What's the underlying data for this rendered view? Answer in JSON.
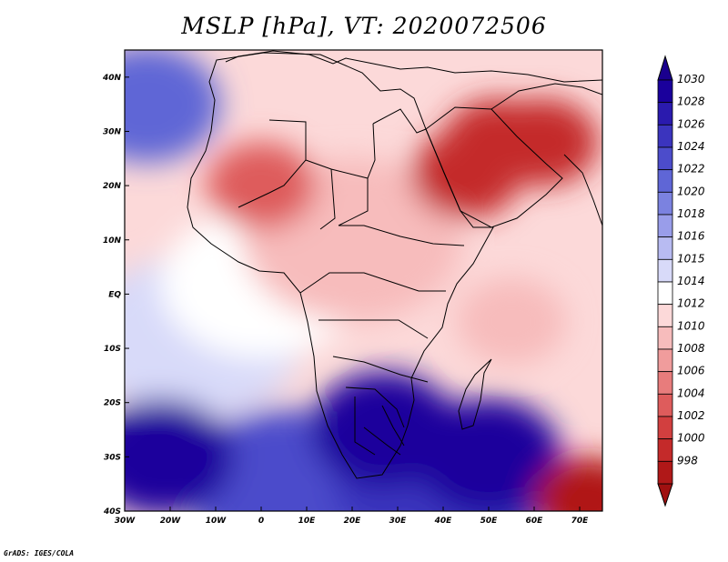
{
  "title": "MSLP [hPa], VT: 2020072506",
  "credit": "GrADS: IGES/COLA",
  "map": {
    "variable": "Mean sea level pressure",
    "units": "hPa",
    "valid_time": "2020072506",
    "lon_range": [
      -30,
      75
    ],
    "lat_range": [
      -40,
      45
    ],
    "lon_ticks": [
      {
        "value": -30,
        "label": "30W"
      },
      {
        "value": -20,
        "label": "20W"
      },
      {
        "value": -10,
        "label": "10W"
      },
      {
        "value": 0,
        "label": "0"
      },
      {
        "value": 10,
        "label": "10E"
      },
      {
        "value": 20,
        "label": "20E"
      },
      {
        "value": 30,
        "label": "30E"
      },
      {
        "value": 40,
        "label": "40E"
      },
      {
        "value": 50,
        "label": "50E"
      },
      {
        "value": 60,
        "label": "60E"
      },
      {
        "value": 70,
        "label": "70E"
      }
    ],
    "lat_ticks": [
      {
        "value": 40,
        "label": "40N"
      },
      {
        "value": 30,
        "label": "30N"
      },
      {
        "value": 20,
        "label": "20N"
      },
      {
        "value": 10,
        "label": "10N"
      },
      {
        "value": 0,
        "label": "EQ"
      },
      {
        "value": -10,
        "label": "10S"
      },
      {
        "value": -20,
        "label": "20S"
      },
      {
        "value": -30,
        "label": "30S"
      },
      {
        "value": -40,
        "label": "40S"
      }
    ]
  },
  "colorbar": {
    "levels": [
      "1030",
      "1028",
      "1026",
      "1024",
      "1022",
      "1020",
      "1018",
      "1016",
      "1015",
      "1014",
      "1012",
      "1010",
      "1008",
      "1006",
      "1004",
      "1002",
      "1000",
      "998"
    ],
    "colors": [
      "#1a009c",
      "#2a1aae",
      "#3b34be",
      "#4c4ccb",
      "#5f66d6",
      "#7b82e0",
      "#999dea",
      "#b8bbf2",
      "#d8daf9",
      "#ffffff",
      "#fcd9d9",
      "#f7bcbc",
      "#f09c9c",
      "#e87c7c",
      "#de5c5c",
      "#d23f3f",
      "#c42a2a",
      "#b01818"
    ],
    "top_arrow_color": "#1a008e",
    "bottom_arrow_color": "#a01010"
  },
  "pressure_features": [
    {
      "lon": -22,
      "lat": -30,
      "value": 1030,
      "type": "high"
    },
    {
      "lon": -25,
      "lat": 35,
      "value": 1022,
      "type": "high"
    },
    {
      "lon": 27,
      "lat": -25,
      "value": 1030,
      "type": "high"
    },
    {
      "lon": 50,
      "lat": -30,
      "value": 1030,
      "type": "high"
    },
    {
      "lon": 45,
      "lat": 22,
      "value": 1000,
      "type": "low"
    },
    {
      "lon": 52,
      "lat": 28,
      "value": 1000,
      "type": "low"
    },
    {
      "lon": 62,
      "lat": 28,
      "value": 1000,
      "type": "low"
    },
    {
      "lon": 0,
      "lat": 20,
      "value": 1004,
      "type": "low"
    },
    {
      "lon": 72,
      "lat": -38,
      "value": 998,
      "type": "low"
    },
    {
      "lon": 55,
      "lat": -5,
      "value": 1010,
      "type": "low"
    }
  ]
}
